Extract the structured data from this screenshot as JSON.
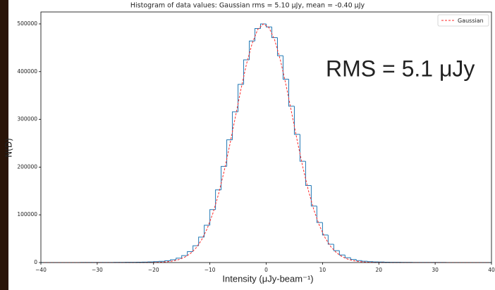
{
  "chart_data": {
    "type": "histogram",
    "title": "Histogram of data values: Gaussian rms =  5.10 μJy, mean =  -0.40 μJy",
    "annotation": "RMS = 5.1 μJy",
    "x_label": "Intensity (μJy-beam⁻¹)",
    "y_label": "N(D)",
    "color": "#1f77b4",
    "bins": [
      -40,
      -39,
      -38,
      -37,
      -36,
      -35,
      -34,
      -33,
      -32,
      -31,
      -30,
      -29,
      -28,
      -27,
      -26,
      -25,
      -24,
      -23,
      -22,
      -21,
      -20,
      -19,
      -18,
      -17,
      -16,
      -15,
      -14,
      -13,
      -12,
      -11,
      -10,
      -9,
      -8,
      -7,
      -6,
      -5,
      -4,
      -3,
      -2,
      -1,
      0,
      1,
      2,
      3,
      4,
      5,
      6,
      7,
      8,
      9,
      10,
      11,
      12,
      13,
      14,
      15,
      16,
      17,
      18,
      19,
      20,
      21,
      22,
      23,
      24,
      25,
      26,
      27,
      28,
      29,
      30,
      31,
      32,
      33,
      34,
      35,
      36,
      37,
      38,
      39,
      40
    ],
    "counts": [
      24,
      29,
      36,
      44,
      54,
      65,
      80,
      98,
      119,
      146,
      178,
      217,
      266,
      324,
      396,
      491,
      609,
      764,
      978,
      1289,
      1765,
      2527,
      3772,
      5828,
      9168,
      14511,
      22804,
      35243,
      53208,
      78096,
      110905,
      152241,
      201499,
      257086,
      315845,
      373336,
      424643,
      464089,
      490402,
      499919,
      493603,
      471153,
      433310,
      384138,
      327503,
      268658,
      212209,
      161415,
      118395,
      83965,
      57651,
      38406,
      24930,
      15910,
      10048,
      6371,
      4105,
      2731,
      1888,
      1369,
      1031,
      800,
      636,
      513,
      415,
      338,
      276,
      226,
      185,
      152,
      124,
      102,
      83,
      68,
      56,
      46,
      37,
      31,
      25,
      20
    ],
    "overlay": {
      "name": "Gaussian",
      "color": "#ff2a2a",
      "dashed": true,
      "x": [
        -39.5,
        -38.5,
        -37.5,
        -36.5,
        -35.5,
        -34.5,
        -33.5,
        -32.5,
        -31.5,
        -30.5,
        -29.5,
        -28.5,
        -27.5,
        -26.5,
        -25.5,
        -24.5,
        -23.5,
        -22.5,
        -21.5,
        -20.5,
        -19.5,
        -18.5,
        -17.5,
        -16.5,
        -15.5,
        -14.5,
        -13.5,
        -12.5,
        -11.5,
        -10.5,
        -9.5,
        -8.5,
        -7.5,
        -6.5,
        -5.5,
        -4.5,
        -3.5,
        -2.5,
        -1.5,
        -0.5,
        0.5,
        1.5,
        2.5,
        3.5,
        4.5,
        5.5,
        6.5,
        7.5,
        8.5,
        9.5,
        10.5,
        11.5,
        12.5,
        13.5,
        14.5,
        15.5,
        16.5,
        17.5,
        18.5,
        19.5,
        20.5,
        21.5,
        22.5,
        23.5,
        24.5,
        25.5,
        26.5,
        27.5,
        28.5,
        29.5,
        30.5,
        31.5,
        32.5,
        33.5,
        34.5,
        35.5,
        36.5,
        37.5,
        38.5,
        39.5
      ],
      "values": [
        0,
        0,
        0,
        0,
        0,
        0,
        0,
        0,
        0,
        0,
        0,
        0,
        0,
        0,
        3,
        7,
        18,
        42,
        96,
        212,
        450,
        920,
        1810,
        3430,
        6240,
        10940,
        18450,
        29950,
        46800,
        70400,
        101800,
        141700,
        189700,
        244500,
        303300,
        362000,
        415800,
        458700,
        488500,
        499900,
        492270,
        466500,
        425100,
        373200,
        315100,
        256000,
        200200,
        150600,
        109000,
        76000,
        51000,
        32900,
        20400,
        12190,
        7000,
        3875,
        2065,
        1057,
        520,
        247,
        113,
        50,
        21,
        9,
        3,
        0,
        0,
        0,
        0,
        0,
        0,
        0,
        0,
        0,
        0,
        0,
        0,
        0,
        0,
        0
      ]
    },
    "xlim": [
      -40,
      40
    ],
    "xticks": [
      {
        "value": -40,
        "label": "−40"
      },
      {
        "value": -30,
        "label": "−30"
      },
      {
        "value": -20,
        "label": "−20"
      },
      {
        "value": -10,
        "label": "−10"
      },
      0,
      10,
      20,
      30,
      40
    ],
    "ylim": [
      0,
      525000
    ],
    "yticks": [
      0,
      100000,
      200000,
      300000,
      400000,
      500000
    ],
    "legend": "upper right"
  }
}
